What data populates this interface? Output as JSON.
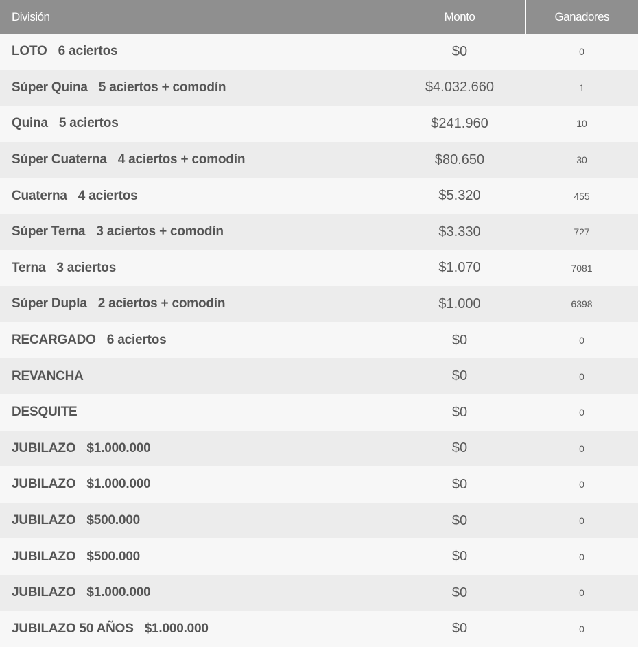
{
  "header": {
    "division": "División",
    "monto": "Monto",
    "ganadores": "Ganadores"
  },
  "rows": [
    {
      "name": "LOTO",
      "detail": "6 aciertos",
      "monto": "$0",
      "ganadores": "0"
    },
    {
      "name": "Súper Quina",
      "detail": "5 aciertos + comodín",
      "monto": "$4.032.660",
      "ganadores": "1"
    },
    {
      "name": "Quina",
      "detail": "5 aciertos",
      "monto": "$241.960",
      "ganadores": "10"
    },
    {
      "name": "Súper Cuaterna",
      "detail": "4 aciertos + comodín",
      "monto": "$80.650",
      "ganadores": "30"
    },
    {
      "name": "Cuaterna",
      "detail": "4 aciertos",
      "monto": "$5.320",
      "ganadores": "455"
    },
    {
      "name": "Súper Terna",
      "detail": "3 aciertos + comodín",
      "monto": "$3.330",
      "ganadores": "727"
    },
    {
      "name": "Terna",
      "detail": "3 aciertos",
      "monto": "$1.070",
      "ganadores": "7081"
    },
    {
      "name": "Súper Dupla",
      "detail": "2 aciertos + comodín",
      "monto": "$1.000",
      "ganadores": "6398"
    },
    {
      "name": "RECARGADO",
      "detail": "6 aciertos",
      "monto": "$0",
      "ganadores": "0"
    },
    {
      "name": "REVANCHA",
      "detail": "",
      "monto": "$0",
      "ganadores": "0"
    },
    {
      "name": "DESQUITE",
      "detail": "",
      "monto": "$0",
      "ganadores": "0"
    },
    {
      "name": "JUBILAZO",
      "detail": "$1.000.000",
      "monto": "$0",
      "ganadores": "0"
    },
    {
      "name": "JUBILAZO",
      "detail": "$1.000.000",
      "monto": "$0",
      "ganadores": "0"
    },
    {
      "name": "JUBILAZO",
      "detail": "$500.000",
      "monto": "$0",
      "ganadores": "0"
    },
    {
      "name": "JUBILAZO",
      "detail": "$500.000",
      "monto": "$0",
      "ganadores": "0"
    },
    {
      "name": "JUBILAZO",
      "detail": "$1.000.000",
      "monto": "$0",
      "ganadores": "0"
    },
    {
      "name": "JUBILAZO 50 AÑOS",
      "detail": "$1.000.000",
      "monto": "$0",
      "ganadores": "0"
    }
  ]
}
